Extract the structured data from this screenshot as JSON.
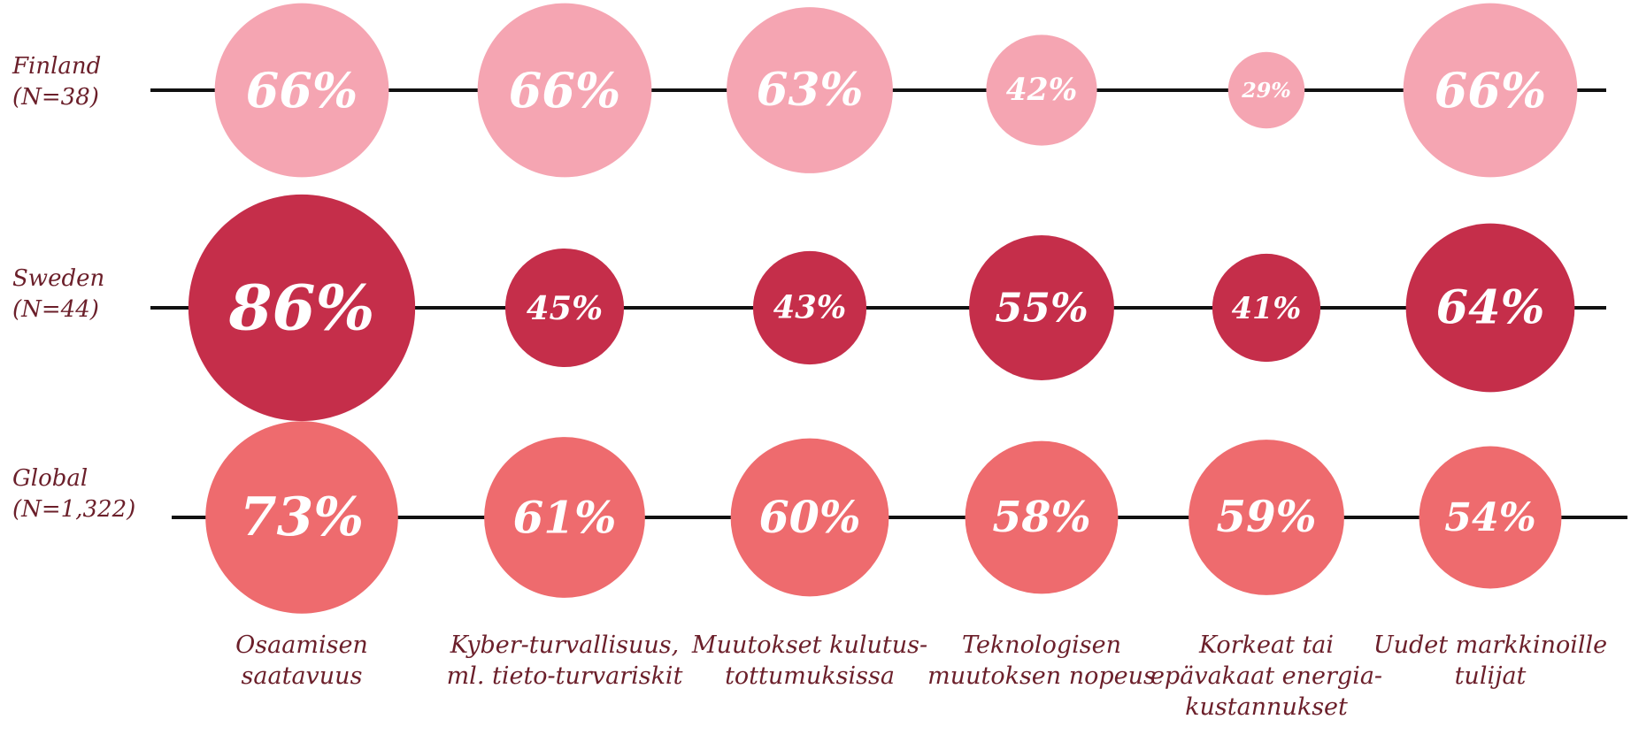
{
  "chart_data": {
    "type": "bubble",
    "categories": [
      "Osaamisen saatavuus",
      "Kyber-turvallisuus, ml. tieto-turvariskit",
      "Muutokset kulutus-tottumuksissa",
      "Teknologisen muutoksen nopeus",
      "Korkeat tai epävakaat energia-kustannukset",
      "Uudet markkinoille tulijat"
    ],
    "series": [
      {
        "name": "Finland",
        "sample": "(N=38)",
        "color": "#f5a5b2",
        "values": [
          66,
          66,
          63,
          42,
          29,
          66
        ],
        "value_labels": [
          "66%",
          "66%",
          "63%",
          "42%",
          "29%",
          "66%"
        ]
      },
      {
        "name": "Sweden",
        "sample": "(N=44)",
        "color": "#c52e4a",
        "values": [
          86,
          45,
          43,
          55,
          41,
          64
        ],
        "value_labels": [
          "86%",
          "45%",
          "43%",
          "55%",
          "41%",
          "64%"
        ]
      },
      {
        "name": "Global",
        "sample": "(N=1,322)",
        "color": "#ee6b6e",
        "values": [
          73,
          61,
          60,
          58,
          59,
          54
        ],
        "value_labels": [
          "73%",
          "61%",
          "60%",
          "58%",
          "59%",
          "54%"
        ]
      }
    ]
  }
}
